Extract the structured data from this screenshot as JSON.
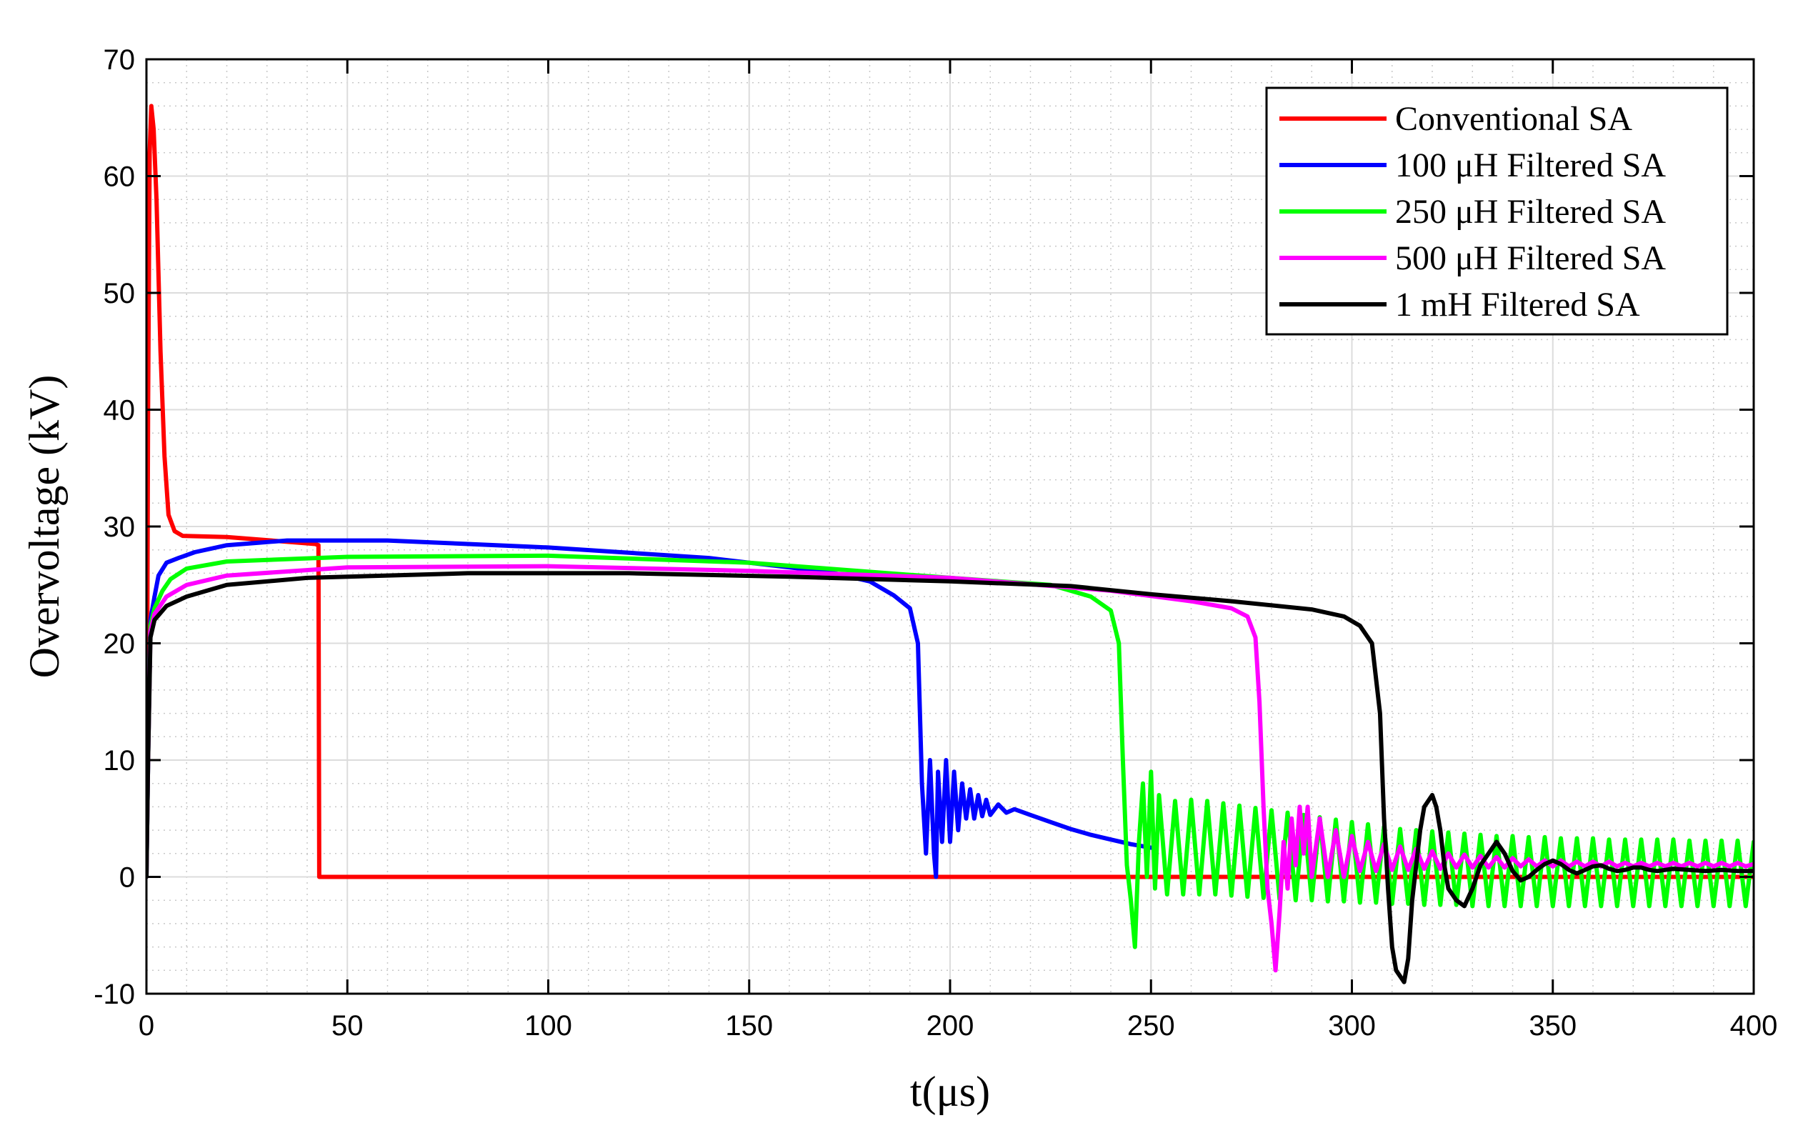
{
  "chart_data": {
    "type": "line",
    "xlabel": "t(μs)",
    "ylabel": "Overvoltage (kV)",
    "xlim": [
      0,
      400
    ],
    "ylim": [
      -10,
      70
    ],
    "xticks": [
      0,
      50,
      100,
      150,
      200,
      250,
      300,
      350,
      400
    ],
    "yticks": [
      -10,
      0,
      10,
      20,
      30,
      40,
      50,
      60,
      70
    ],
    "xtick_labels": [
      "0",
      "50",
      "100",
      "150",
      "200",
      "250",
      "300",
      "350",
      "400"
    ],
    "ytick_labels": [
      "-10",
      "0",
      "10",
      "20",
      "30",
      "40",
      "50",
      "60",
      "70"
    ],
    "grid": "major and minor (dotted)",
    "legend_position": "top-right",
    "series": [
      {
        "name": "Conventional SA",
        "color": "#ff0000",
        "points": [
          [
            0,
            0
          ],
          [
            0.4,
            40
          ],
          [
            0.8,
            62
          ],
          [
            1.2,
            66
          ],
          [
            1.8,
            64
          ],
          [
            2.5,
            58
          ],
          [
            3.5,
            45
          ],
          [
            4.5,
            36
          ],
          [
            5.5,
            31
          ],
          [
            7,
            29.6
          ],
          [
            9,
            29.2
          ],
          [
            20,
            29.1
          ],
          [
            42,
            28.5
          ],
          [
            42.8,
            28.4
          ],
          [
            43,
            0
          ],
          [
            250,
            0
          ],
          [
            400,
            0
          ]
        ]
      },
      {
        "name": "100 μH Filtered SA",
        "color": "#0000ff",
        "points": [
          [
            0,
            0
          ],
          [
            0.4,
            10
          ],
          [
            1,
            22
          ],
          [
            2,
            24
          ],
          [
            3,
            25.8
          ],
          [
            5,
            26.9
          ],
          [
            8,
            27.3
          ],
          [
            12,
            27.8
          ],
          [
            20,
            28.4
          ],
          [
            35,
            28.8
          ],
          [
            60,
            28.8
          ],
          [
            100,
            28.2
          ],
          [
            140,
            27.3
          ],
          [
            170,
            26.1
          ],
          [
            180,
            25.3
          ],
          [
            186,
            24.1
          ],
          [
            190,
            23
          ],
          [
            192,
            20
          ],
          [
            193,
            8
          ],
          [
            194,
            2
          ],
          [
            195,
            10
          ],
          [
            196,
            2
          ],
          [
            196.5,
            0
          ],
          [
            197,
            9
          ],
          [
            198,
            3
          ],
          [
            199,
            10
          ],
          [
            200,
            3
          ],
          [
            201,
            9
          ],
          [
            202,
            4
          ],
          [
            203,
            8
          ],
          [
            204,
            5
          ],
          [
            205,
            7.5
          ],
          [
            206,
            5
          ],
          [
            207,
            7
          ],
          [
            208,
            5.2
          ],
          [
            209,
            6.6
          ],
          [
            210,
            5.3
          ],
          [
            212,
            6.2
          ],
          [
            214,
            5.5
          ],
          [
            216,
            5.8
          ],
          [
            220,
            5.3
          ],
          [
            225,
            4.7
          ],
          [
            230,
            4.1
          ],
          [
            235,
            3.6
          ],
          [
            240,
            3.2
          ],
          [
            245,
            2.8
          ],
          [
            250,
            2.5
          ]
        ]
      },
      {
        "name": "250 μH Filtered SA",
        "color": "#00ff00",
        "points": [
          [
            0,
            0
          ],
          [
            0.4,
            10
          ],
          [
            1,
            21.5
          ],
          [
            2,
            23
          ],
          [
            4,
            24.5
          ],
          [
            6,
            25.5
          ],
          [
            10,
            26.4
          ],
          [
            20,
            27
          ],
          [
            50,
            27.4
          ],
          [
            100,
            27.5
          ],
          [
            150,
            26.9
          ],
          [
            200,
            25.6
          ],
          [
            225,
            25
          ],
          [
            235,
            24
          ],
          [
            240,
            22.8
          ],
          [
            242,
            20
          ],
          [
            243,
            10
          ],
          [
            244,
            1
          ],
          [
            245,
            -2
          ],
          [
            246,
            -6
          ],
          [
            247,
            3
          ],
          [
            248,
            8
          ],
          [
            249,
            0
          ],
          [
            250,
            9
          ],
          [
            251,
            -1
          ],
          [
            252,
            7
          ],
          [
            254,
            -1.5
          ],
          [
            256,
            6.5
          ],
          [
            258,
            -1.5
          ],
          [
            260,
            6.6
          ],
          [
            262,
            -1.5
          ],
          [
            264,
            6.5
          ],
          [
            266,
            -1.5
          ],
          [
            268,
            6.3
          ],
          [
            270,
            -1.6
          ],
          [
            272,
            6.1
          ],
          [
            274,
            -1.7
          ],
          [
            276,
            5.9
          ],
          [
            278,
            -1.8
          ],
          [
            280,
            5.7
          ],
          [
            282,
            -1.9
          ],
          [
            284,
            5.5
          ],
          [
            286,
            -2
          ],
          [
            288,
            5.3
          ],
          [
            290,
            -2
          ],
          [
            292,
            5.1
          ],
          [
            294,
            -2.1
          ],
          [
            296,
            4.9
          ],
          [
            298,
            -2.1
          ],
          [
            300,
            4.7
          ],
          [
            302,
            -2.2
          ],
          [
            304,
            4.5
          ],
          [
            306,
            -2.2
          ],
          [
            308,
            4.3
          ],
          [
            310,
            -2.3
          ],
          [
            312,
            4.1
          ],
          [
            314,
            -2.3
          ],
          [
            316,
            4
          ],
          [
            318,
            -2.4
          ],
          [
            320,
            3.9
          ],
          [
            322,
            -2.4
          ],
          [
            324,
            3.8
          ],
          [
            326,
            -2.4
          ],
          [
            328,
            3.7
          ],
          [
            330,
            -2.5
          ],
          [
            332,
            3.6
          ],
          [
            334,
            -2.5
          ],
          [
            336,
            3.5
          ],
          [
            338,
            -2.5
          ],
          [
            340,
            3.5
          ],
          [
            342,
            -2.5
          ],
          [
            344,
            3.4
          ],
          [
            346,
            -2.5
          ],
          [
            348,
            3.4
          ],
          [
            350,
            -2.5
          ],
          [
            352,
            3.3
          ],
          [
            354,
            -2.5
          ],
          [
            356,
            3.3
          ],
          [
            358,
            -2.5
          ],
          [
            360,
            3.3
          ],
          [
            362,
            -2.5
          ],
          [
            364,
            3.2
          ],
          [
            366,
            -2.5
          ],
          [
            368,
            3.2
          ],
          [
            370,
            -2.5
          ],
          [
            372,
            3.2
          ],
          [
            374,
            -2.5
          ],
          [
            376,
            3.2
          ],
          [
            378,
            -2.5
          ],
          [
            380,
            3.2
          ],
          [
            382,
            -2.5
          ],
          [
            384,
            3.1
          ],
          [
            386,
            -2.5
          ],
          [
            388,
            3.1
          ],
          [
            390,
            -2.5
          ],
          [
            392,
            3.1
          ],
          [
            394,
            -2.5
          ],
          [
            396,
            3.1
          ],
          [
            398,
            -2.5
          ],
          [
            400,
            3
          ]
        ]
      },
      {
        "name": "500 μH Filtered SA",
        "color": "#ff00ff",
        "points": [
          [
            0,
            0
          ],
          [
            0.4,
            10
          ],
          [
            1,
            21
          ],
          [
            2,
            22.5
          ],
          [
            5,
            24
          ],
          [
            10,
            25
          ],
          [
            20,
            25.8
          ],
          [
            50,
            26.5
          ],
          [
            100,
            26.6
          ],
          [
            150,
            26.2
          ],
          [
            200,
            25.6
          ],
          [
            240,
            24.5
          ],
          [
            260,
            23.6
          ],
          [
            270,
            23
          ],
          [
            274,
            22.3
          ],
          [
            276,
            20.5
          ],
          [
            277,
            15
          ],
          [
            278,
            6
          ],
          [
            279,
            -1
          ],
          [
            280,
            -4
          ],
          [
            281,
            -8
          ],
          [
            282,
            -3
          ],
          [
            283,
            3
          ],
          [
            284,
            -1
          ],
          [
            285,
            5
          ],
          [
            286,
            1
          ],
          [
            287,
            6
          ],
          [
            288,
            2
          ],
          [
            289,
            6
          ],
          [
            290,
            0
          ],
          [
            292,
            5
          ],
          [
            294,
            0
          ],
          [
            296,
            4
          ],
          [
            298,
            0
          ],
          [
            300,
            3.5
          ],
          [
            302,
            0.5
          ],
          [
            304,
            3
          ],
          [
            306,
            0.5
          ],
          [
            308,
            2.8
          ],
          [
            310,
            0.6
          ],
          [
            312,
            2.6
          ],
          [
            314,
            0.6
          ],
          [
            316,
            2.4
          ],
          [
            318,
            0.7
          ],
          [
            320,
            2.2
          ],
          [
            322,
            0.7
          ],
          [
            324,
            2
          ],
          [
            326,
            0.8
          ],
          [
            328,
            1.9
          ],
          [
            330,
            0.8
          ],
          [
            332,
            1.8
          ],
          [
            334,
            0.8
          ],
          [
            336,
            1.7
          ],
          [
            338,
            0.8
          ],
          [
            340,
            1.6
          ],
          [
            342,
            0.9
          ],
          [
            344,
            1.5
          ],
          [
            346,
            0.9
          ],
          [
            348,
            1.4
          ],
          [
            350,
            0.9
          ],
          [
            352,
            1.4
          ],
          [
            354,
            0.9
          ],
          [
            356,
            1.3
          ],
          [
            358,
            0.9
          ],
          [
            360,
            1.3
          ],
          [
            362,
            0.9
          ],
          [
            364,
            1.3
          ],
          [
            366,
            0.9
          ],
          [
            368,
            1.2
          ],
          [
            370,
            0.9
          ],
          [
            372,
            1.2
          ],
          [
            374,
            0.9
          ],
          [
            376,
            1.2
          ],
          [
            378,
            0.9
          ],
          [
            380,
            1.2
          ],
          [
            382,
            0.9
          ],
          [
            384,
            1.2
          ],
          [
            386,
            0.9
          ],
          [
            388,
            1.2
          ],
          [
            390,
            0.9
          ],
          [
            392,
            1.2
          ],
          [
            394,
            0.9
          ],
          [
            396,
            1.2
          ],
          [
            398,
            0.9
          ],
          [
            400,
            1.1
          ]
        ]
      },
      {
        "name": "1 mH Filtered SA",
        "color": "#000000",
        "points": [
          [
            0,
            0
          ],
          [
            0.4,
            10
          ],
          [
            1,
            20.5
          ],
          [
            2,
            22
          ],
          [
            5,
            23.2
          ],
          [
            10,
            24
          ],
          [
            20,
            25
          ],
          [
            40,
            25.6
          ],
          [
            80,
            26
          ],
          [
            120,
            26
          ],
          [
            160,
            25.7
          ],
          [
            200,
            25.3
          ],
          [
            230,
            24.9
          ],
          [
            250,
            24.2
          ],
          [
            270,
            23.6
          ],
          [
            290,
            22.9
          ],
          [
            298,
            22.3
          ],
          [
            302,
            21.5
          ],
          [
            305,
            20
          ],
          [
            307,
            14
          ],
          [
            308,
            5
          ],
          [
            309,
            -1
          ],
          [
            310,
            -6
          ],
          [
            311,
            -8
          ],
          [
            312,
            -8.5
          ],
          [
            313,
            -9
          ],
          [
            314,
            -7
          ],
          [
            315,
            -2
          ],
          [
            316,
            1
          ],
          [
            317,
            4
          ],
          [
            318,
            6
          ],
          [
            319,
            6.5
          ],
          [
            320,
            7
          ],
          [
            321,
            6
          ],
          [
            322,
            4
          ],
          [
            323,
            1
          ],
          [
            324,
            -1
          ],
          [
            326,
            -2
          ],
          [
            328,
            -2.5
          ],
          [
            330,
            -1
          ],
          [
            332,
            1
          ],
          [
            334,
            2
          ],
          [
            336,
            3
          ],
          [
            338,
            2
          ],
          [
            340,
            0.5
          ],
          [
            342,
            -0.3
          ],
          [
            344,
            0
          ],
          [
            346,
            0.6
          ],
          [
            348,
            1.1
          ],
          [
            350,
            1.4
          ],
          [
            352,
            1.1
          ],
          [
            354,
            0.6
          ],
          [
            356,
            0.3
          ],
          [
            358,
            0.6
          ],
          [
            360,
            0.9
          ],
          [
            362,
            1
          ],
          [
            364,
            0.7
          ],
          [
            366,
            0.5
          ],
          [
            368,
            0.6
          ],
          [
            370,
            0.8
          ],
          [
            372,
            0.8
          ],
          [
            374,
            0.6
          ],
          [
            376,
            0.5
          ],
          [
            378,
            0.6
          ],
          [
            380,
            0.7
          ],
          [
            384,
            0.6
          ],
          [
            388,
            0.5
          ],
          [
            392,
            0.6
          ],
          [
            396,
            0.5
          ],
          [
            400,
            0.5
          ]
        ]
      }
    ]
  }
}
